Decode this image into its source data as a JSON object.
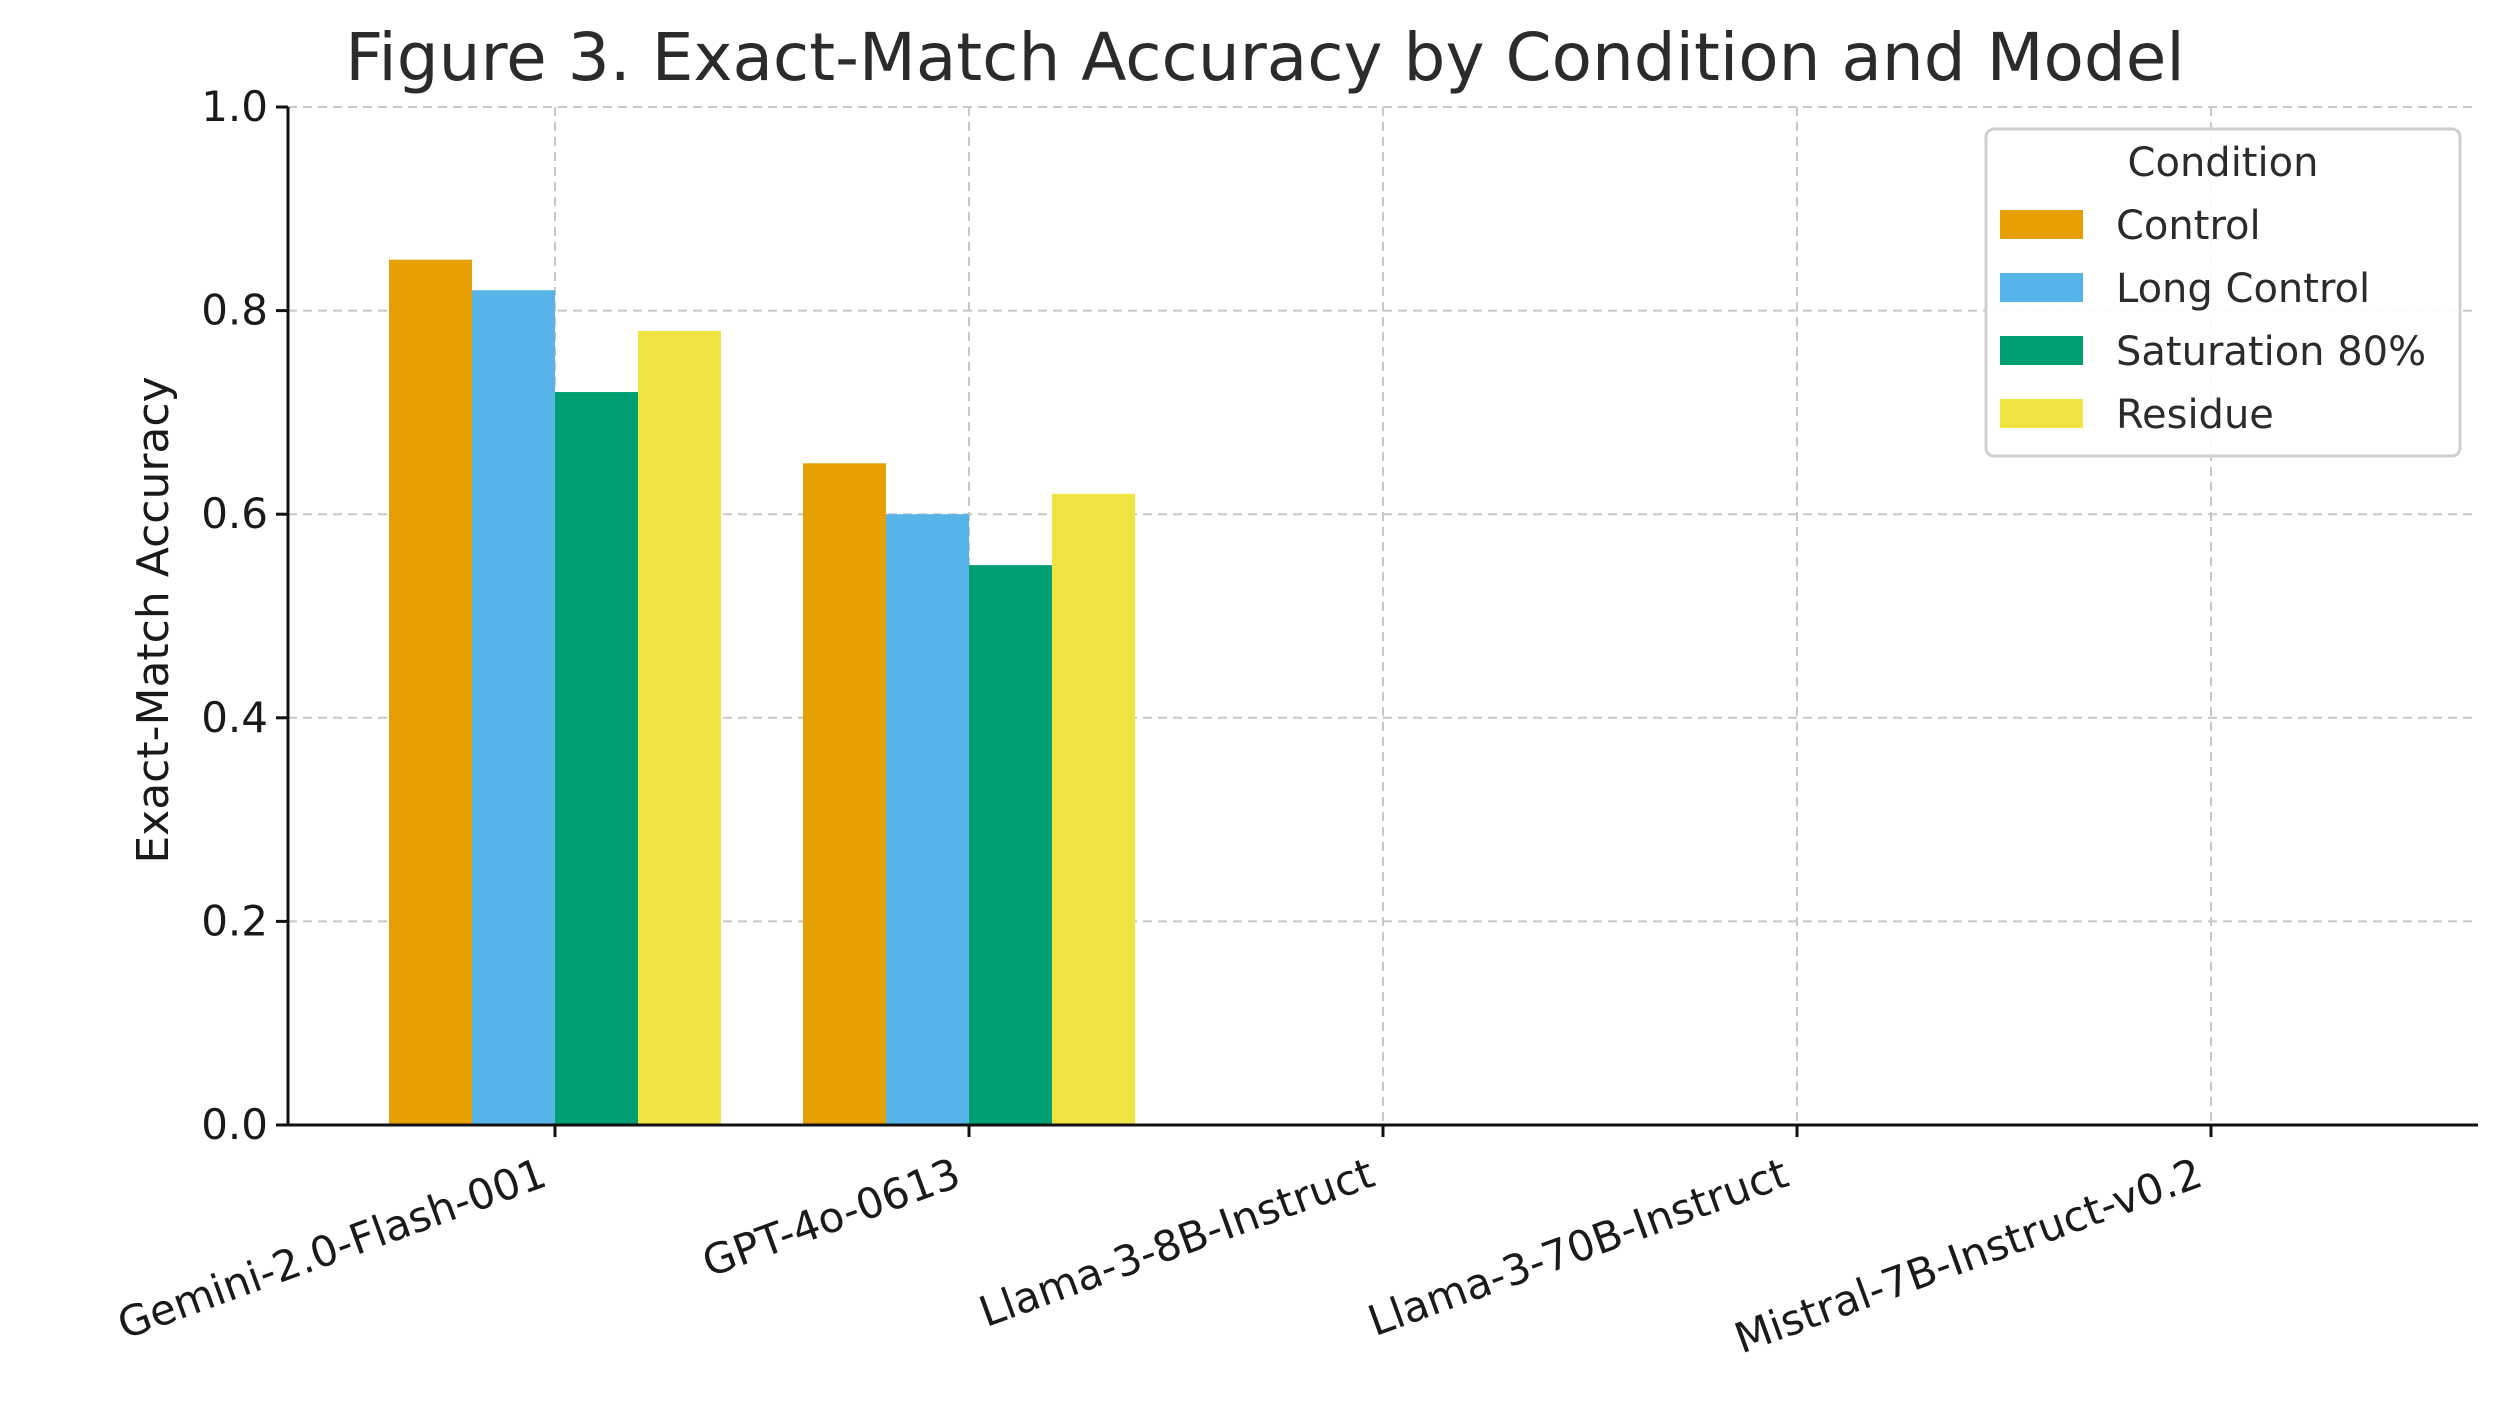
{
  "chart_data": {
    "type": "bar",
    "title": "Figure 3. Exact-Match Accuracy by Condition and Model",
    "xlabel": "",
    "ylabel": "Exact-Match Accuracy",
    "ylim": [
      0,
      1.0
    ],
    "yticks": [
      "0.0",
      "0.2",
      "0.4",
      "0.6",
      "0.8",
      "1.0"
    ],
    "grid": true,
    "legend": {
      "title": "Condition",
      "placement": "top-right"
    },
    "categories": [
      "Gemini-2.0-Flash-001",
      "GPT-4o-0613",
      "Llama-3-8B-Instruct",
      "Llama-3-70B-Instruct",
      "Mistral-7B-Instruct-v0.2"
    ],
    "series": [
      {
        "name": "Control",
        "color": "#E69F00",
        "values": [
          0.85,
          0.65,
          null,
          null,
          null
        ]
      },
      {
        "name": "Long Control",
        "color": "#56B4E9",
        "values": [
          0.82,
          0.6,
          null,
          null,
          null
        ]
      },
      {
        "name": "Saturation 80%",
        "color": "#009E73",
        "values": [
          0.72,
          0.55,
          null,
          null,
          null
        ]
      },
      {
        "name": "Residue",
        "color": "#F0E442",
        "values": [
          0.78,
          0.62,
          null,
          null,
          null
        ]
      }
    ]
  }
}
